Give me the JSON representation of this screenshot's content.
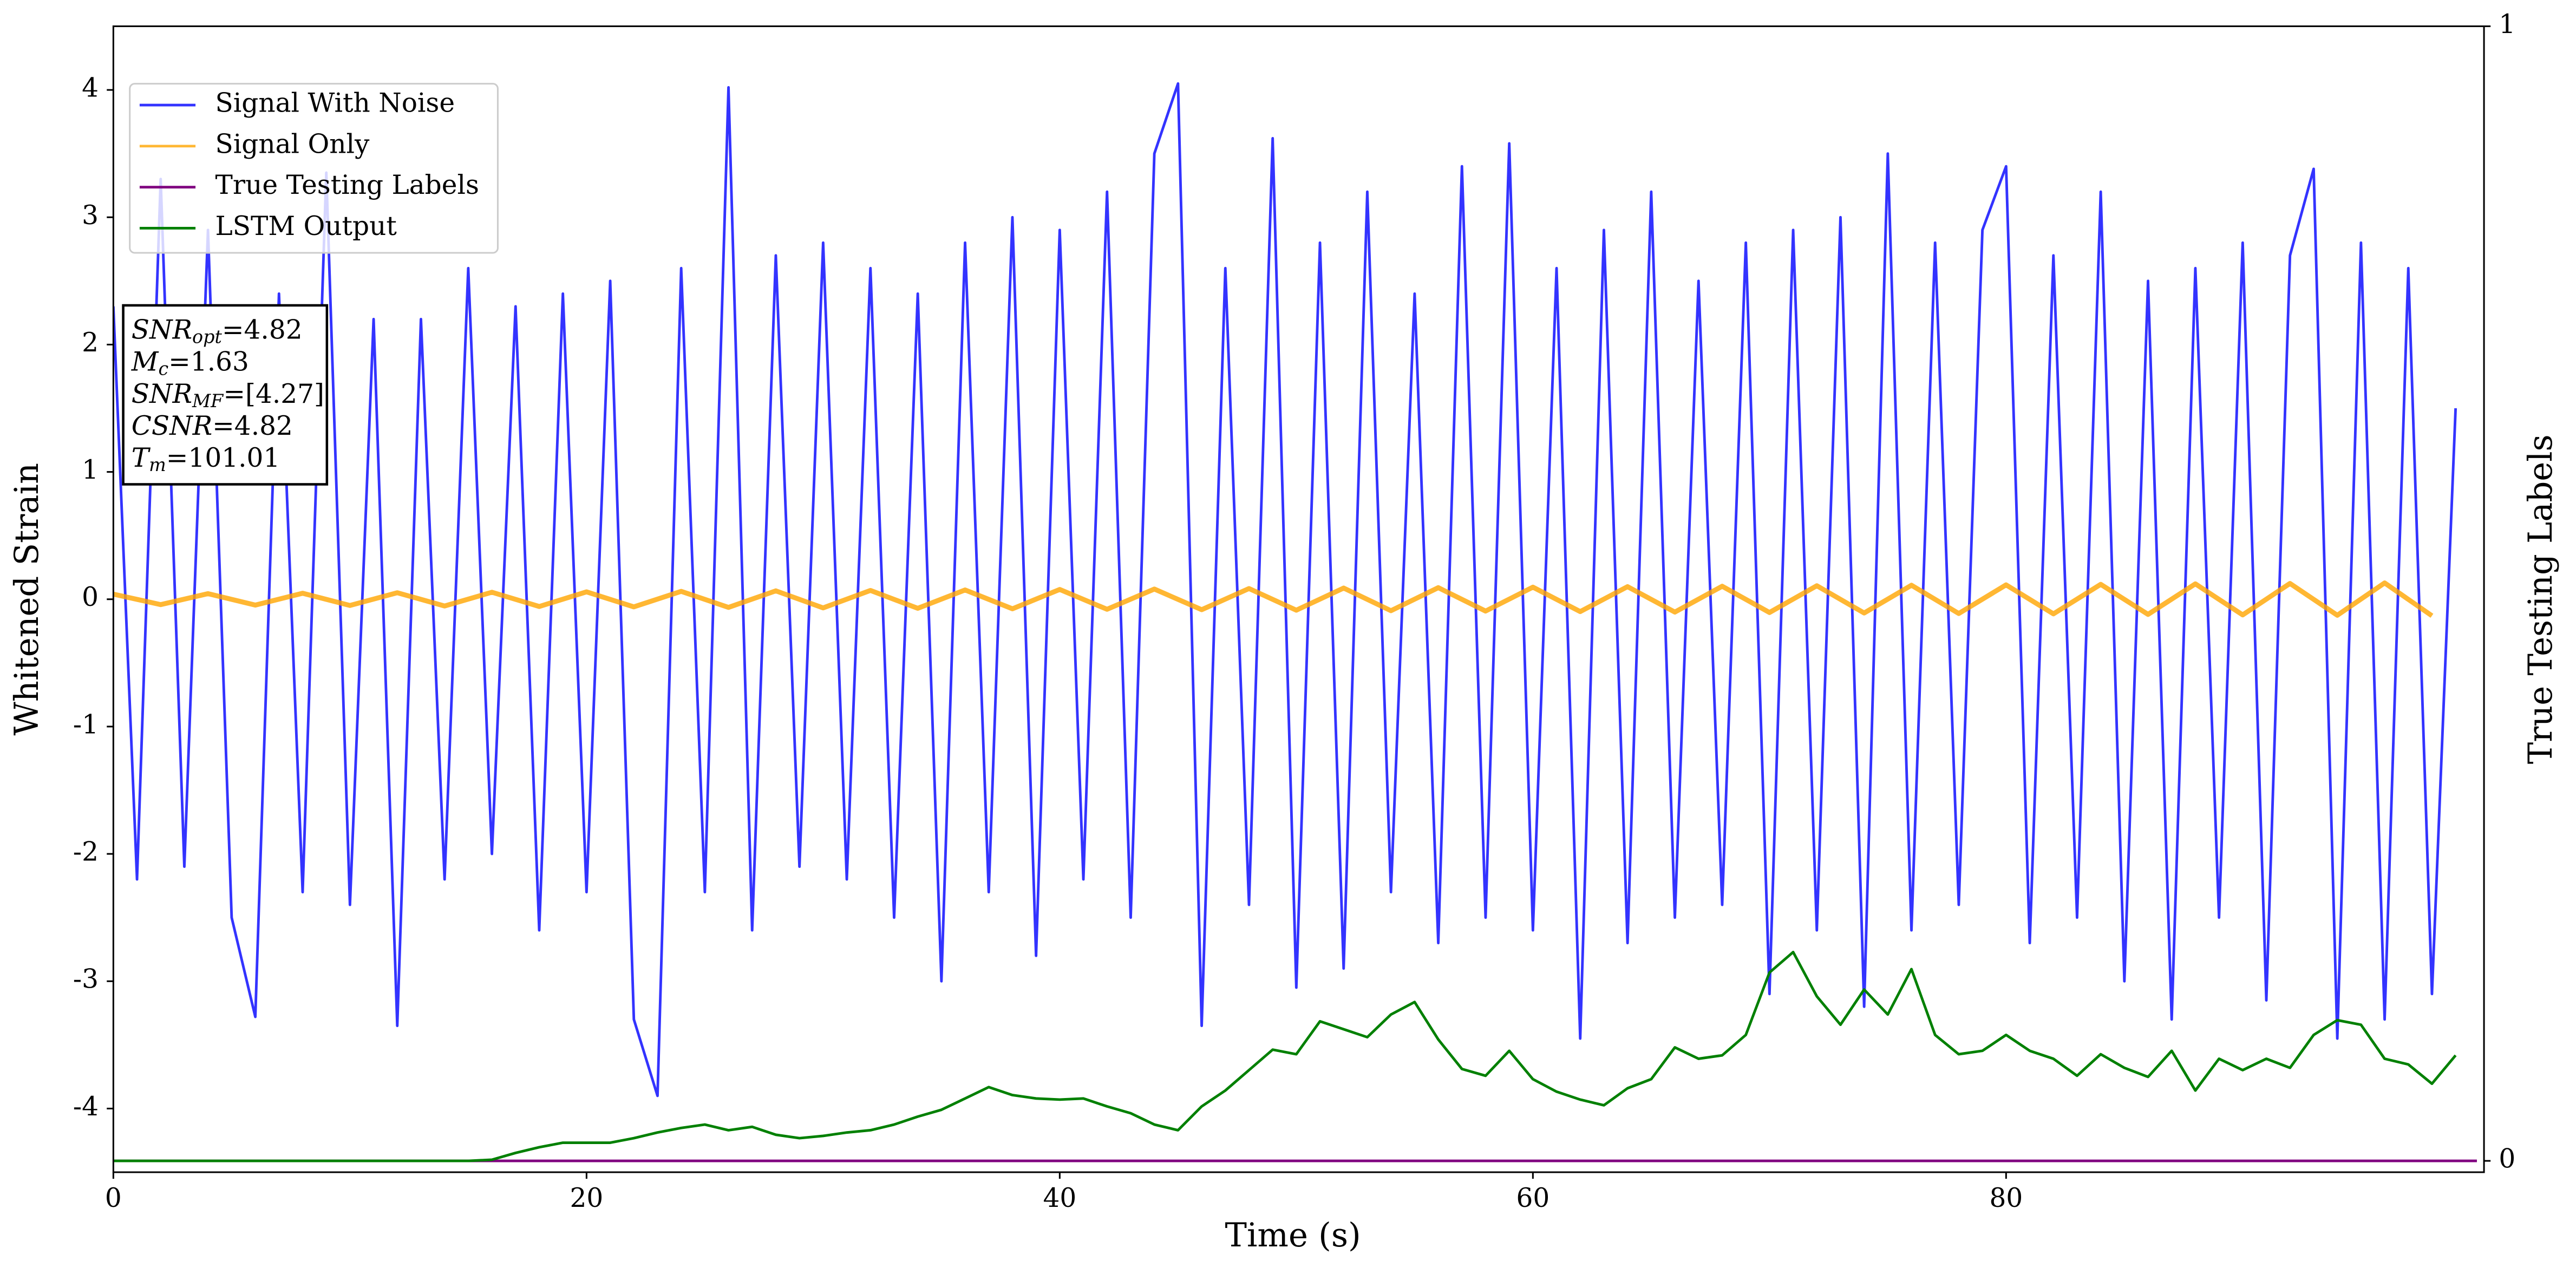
{
  "chart_data": {
    "type": "line",
    "xlabel": "Time (s)",
    "ylabel": "Whitened Strain",
    "y2label": "True Testing Labels",
    "xlim": [
      0,
      100.2
    ],
    "xticks": [
      0,
      20,
      40,
      60,
      80
    ],
    "ylim": [
      -4.5,
      4.5
    ],
    "yticks": [
      -4,
      -3,
      -2,
      -1,
      0,
      1,
      2,
      3,
      4
    ],
    "y2lim": [
      -0.01,
      1.0
    ],
    "y2ticks": [
      0,
      1
    ],
    "legend": "upper left",
    "annotations": [
      {
        "symbol": "SNR",
        "sub": "opt",
        "text": "=4.82"
      },
      {
        "symbol": "M",
        "sub": "c",
        "text": "=1.63"
      },
      {
        "symbol": "SNR",
        "sub": "MF",
        "text": "=[4.27]"
      },
      {
        "symbol": "CSNR",
        "text": "=4.82"
      },
      {
        "symbol": "T",
        "sub": "m",
        "text": "=101.01"
      }
    ],
    "series": [
      {
        "name": "Signal With Noise",
        "color": "#0000ff",
        "alpha": 0.8,
        "x": [
          0,
          1,
          2,
          3,
          4,
          5,
          6,
          7,
          8,
          9,
          10,
          11,
          12,
          13,
          14,
          15,
          16,
          17,
          18,
          19,
          20,
          21,
          22,
          23,
          24,
          25,
          26,
          27,
          28,
          29,
          30,
          31,
          32,
          33,
          34,
          35,
          36,
          37,
          38,
          39,
          40,
          41,
          42,
          43,
          44,
          45,
          46,
          47,
          48,
          49,
          50,
          51,
          52,
          53,
          54,
          55,
          56,
          57,
          58,
          59,
          60,
          61,
          62,
          63,
          64,
          65,
          66,
          67,
          68,
          69,
          70,
          71,
          72,
          73,
          74,
          75,
          76,
          77,
          78,
          79,
          80,
          81,
          82,
          83,
          84,
          85,
          86,
          87,
          88,
          89,
          90,
          91,
          92,
          93,
          94,
          95,
          96,
          97,
          98,
          99
        ],
        "values": [
          2.3,
          -2.2,
          3.3,
          -2.1,
          2.9,
          -2.5,
          -3.28,
          2.4,
          -2.3,
          3.35,
          -2.4,
          2.2,
          -3.35,
          2.2,
          -2.2,
          2.6,
          -2.0,
          2.3,
          -2.6,
          2.4,
          -2.3,
          2.5,
          -3.3,
          -3.9,
          2.6,
          -2.3,
          4.02,
          -2.6,
          2.7,
          -2.1,
          2.8,
          -2.2,
          2.6,
          -2.5,
          2.4,
          -3.0,
          2.8,
          -2.3,
          3.0,
          -2.8,
          2.9,
          -2.2,
          3.2,
          -2.5,
          3.5,
          4.05,
          -3.35,
          2.6,
          -2.4,
          3.62,
          -3.05,
          2.8,
          -2.9,
          3.2,
          -2.3,
          2.4,
          -2.7,
          3.4,
          -2.5,
          3.58,
          -2.6,
          2.6,
          -3.45,
          2.9,
          -2.7,
          3.2,
          -2.5,
          2.5,
          -2.4,
          2.8,
          -3.1,
          2.9,
          -2.6,
          3.0,
          -3.2,
          3.5,
          -2.6,
          2.8,
          -2.4,
          2.9,
          3.4,
          -2.7,
          2.7,
          -2.5,
          3.2,
          -3.0,
          2.5,
          -3.3,
          2.6,
          -2.5,
          2.8,
          -3.15,
          2.7,
          3.38,
          -3.45,
          2.8,
          -3.3,
          2.6,
          -3.1,
          1.5
        ]
      },
      {
        "name": "Signal Only",
        "color": "#ffa500",
        "alpha": 0.8,
        "x": [
          0,
          2,
          4,
          6,
          8,
          10,
          12,
          14,
          16,
          18,
          20,
          22,
          24,
          26,
          28,
          30,
          32,
          34,
          36,
          38,
          40,
          42,
          44,
          46,
          48,
          50,
          52,
          54,
          56,
          58,
          60,
          62,
          64,
          66,
          68,
          70,
          72,
          74,
          76,
          78,
          80,
          82,
          84,
          86,
          88,
          90,
          92,
          94,
          96,
          98
        ],
        "values": [
          0.04,
          -0.042,
          0.044,
          -0.046,
          0.047,
          -0.049,
          0.051,
          -0.053,
          0.055,
          -0.057,
          0.058,
          -0.06,
          0.062,
          -0.064,
          0.066,
          -0.068,
          0.069,
          -0.071,
          0.073,
          -0.075,
          0.077,
          -0.079,
          0.08,
          -0.082,
          0.084,
          -0.086,
          0.088,
          -0.09,
          0.091,
          -0.093,
          0.095,
          -0.097,
          0.099,
          -0.101,
          0.102,
          -0.104,
          0.106,
          -0.108,
          0.11,
          -0.112,
          0.113,
          -0.115,
          0.117,
          -0.119,
          0.121,
          -0.123,
          0.124,
          -0.126,
          0.128,
          -0.13
        ]
      },
      {
        "name": "True Testing Labels",
        "color": "#800080",
        "axis": "y2",
        "x": [
          0,
          99.9
        ],
        "values": [
          0,
          0
        ]
      },
      {
        "name": "LSTM Output",
        "color": "#008000",
        "axis": "y2",
        "x": [
          0,
          1,
          2,
          3,
          4,
          5,
          6,
          7,
          8,
          9,
          10,
          11,
          12,
          13,
          14,
          15,
          16,
          17,
          18,
          19,
          20,
          21,
          22,
          23,
          24,
          25,
          26,
          27,
          28,
          29,
          30,
          31,
          32,
          33,
          34,
          35,
          36,
          37,
          38,
          39,
          40,
          41,
          42,
          43,
          44,
          45,
          46,
          47,
          48,
          49,
          50,
          51,
          52,
          53,
          54,
          55,
          56,
          57,
          58,
          59,
          60,
          61,
          62,
          63,
          64,
          65,
          66,
          67,
          68,
          69,
          70,
          71,
          72,
          73,
          74,
          75,
          76,
          77,
          78,
          79,
          80,
          81,
          82,
          83,
          84,
          85,
          86,
          87,
          88,
          89,
          90,
          91,
          92,
          93,
          94,
          95,
          96,
          97,
          98,
          99
        ],
        "values": [
          0,
          0,
          0,
          0,
          0,
          0,
          0,
          0,
          0,
          0,
          0,
          0,
          0,
          0,
          0,
          0,
          0.001,
          0.007,
          0.012,
          0.016,
          0.016,
          0.016,
          0.02,
          0.025,
          0.029,
          0.032,
          0.027,
          0.03,
          0.023,
          0.02,
          0.022,
          0.025,
          0.027,
          0.032,
          0.039,
          0.045,
          0.055,
          0.065,
          0.058,
          0.055,
          0.054,
          0.055,
          0.048,
          0.042,
          0.032,
          0.027,
          0.048,
          0.062,
          0.08,
          0.098,
          0.094,
          0.123,
          0.116,
          0.109,
          0.129,
          0.14,
          0.107,
          0.081,
          0.075,
          0.097,
          0.072,
          0.061,
          0.054,
          0.049,
          0.064,
          0.072,
          0.1,
          0.09,
          0.093,
          0.111,
          0.166,
          0.184,
          0.145,
          0.12,
          0.151,
          0.129,
          0.169,
          0.111,
          0.094,
          0.097,
          0.111,
          0.097,
          0.09,
          0.075,
          0.094,
          0.082,
          0.074,
          0.097,
          0.062,
          0.09,
          0.08,
          0.09,
          0.082,
          0.111,
          0.124,
          0.12,
          0.09,
          0.085,
          0.068,
          0.093
        ]
      }
    ]
  }
}
